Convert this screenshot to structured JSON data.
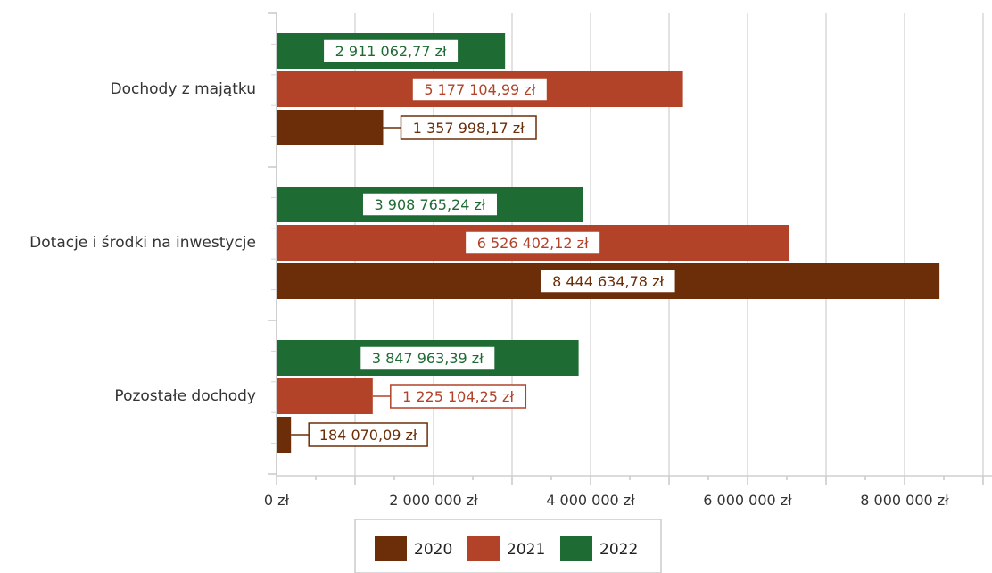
{
  "chart_data": {
    "type": "bar",
    "orientation": "horizontal",
    "categories": [
      "Dochody z majątku",
      "Dotacje i środki na inwestycje",
      "Pozostałe dochody"
    ],
    "series": [
      {
        "name": "2022",
        "color": "#1e6b34",
        "values": [
          2911062.77,
          3908765.24,
          3847963.39
        ],
        "labels": [
          "2 911 062,77 zł",
          "3 908 765,24 zł",
          "3 847 963,39 zł"
        ]
      },
      {
        "name": "2021",
        "color": "#b24228",
        "values": [
          5177104.99,
          6526402.12,
          1225104.25
        ],
        "labels": [
          "5 177 104,99 zł",
          "6 526 402,12 zł",
          "1 225 104,25 zł"
        ]
      },
      {
        "name": "2020",
        "color": "#6b2e08",
        "values": [
          1357998.17,
          8444634.78,
          184070.09
        ],
        "labels": [
          "1 357 998,17 zł",
          "8 444 634,78 zł",
          "184 070,09 zł"
        ]
      }
    ],
    "xlim": [
      0,
      9000000
    ],
    "xticks": [
      0,
      2000000,
      4000000,
      6000000,
      8000000
    ],
    "xtick_labels": [
      "0 zł",
      "2 000 000 zł",
      "4 000 000 zł",
      "6 000 000 zł",
      "8 000 000 zł"
    ],
    "grid": true,
    "legend": {
      "position": "bottom",
      "entries": [
        "2020",
        "2021",
        "2022"
      ]
    }
  }
}
